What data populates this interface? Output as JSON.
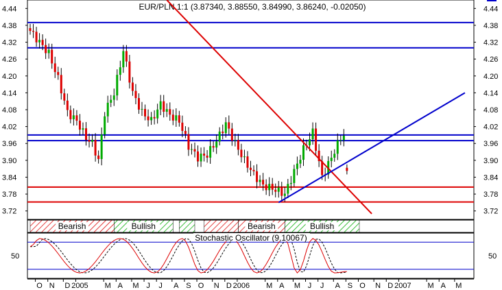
{
  "chart_data": [
    {
      "type": "candlestick",
      "title": "EUR/PLN 1:1 (3.87340, 3.88550, 3.84990, 3.86240, -0.02050)",
      "ylim": [
        3.69,
        4.47
      ],
      "y_ticks": [
        "4.44",
        "4.38",
        "4.32",
        "4.26",
        "4.20",
        "4.14",
        "4.08",
        "4.02",
        "3.96",
        "3.90",
        "3.84",
        "3.78",
        "3.72"
      ],
      "y_tick_values": [
        4.44,
        4.38,
        4.32,
        4.26,
        4.2,
        4.14,
        4.08,
        4.02,
        3.96,
        3.9,
        3.84,
        3.78,
        3.72
      ],
      "x_ticks": [
        "O",
        "N",
        "D",
        "2005",
        "M",
        "A",
        "M",
        "J",
        "J",
        "A",
        "S",
        "O",
        "N",
        "D",
        "2006",
        "M",
        "A",
        "M",
        "J",
        "J",
        "A",
        "S",
        "O",
        "N",
        "D",
        "2007",
        "M",
        "A",
        "M"
      ],
      "x_tick_weeks": [
        3,
        7,
        12,
        16,
        25,
        29,
        34,
        38,
        42,
        47,
        51,
        55,
        60,
        64,
        68,
        77,
        81,
        86,
        90,
        94,
        99,
        103,
        107,
        112,
        116,
        120,
        129,
        133,
        138
      ],
      "last_week": 102,
      "weeks_shown": 142,
      "anchors": [
        [
          0,
          4.36
        ],
        [
          3,
          4.32
        ],
        [
          6,
          4.28
        ],
        [
          9,
          4.19
        ],
        [
          12,
          4.07
        ],
        [
          15,
          4.04
        ],
        [
          18,
          3.98
        ],
        [
          20,
          3.96
        ],
        [
          22,
          3.9
        ],
        [
          24,
          4.07
        ],
        [
          27,
          4.14
        ],
        [
          30,
          4.29
        ],
        [
          33,
          4.14
        ],
        [
          36,
          4.07
        ],
        [
          39,
          4.04
        ],
        [
          42,
          4.1
        ],
        [
          45,
          4.06
        ],
        [
          48,
          4.04
        ],
        [
          51,
          3.95
        ],
        [
          54,
          3.91
        ],
        [
          57,
          3.92
        ],
        [
          60,
          3.97
        ],
        [
          63,
          4.03
        ],
        [
          66,
          3.96
        ],
        [
          69,
          3.9
        ],
        [
          72,
          3.85
        ],
        [
          75,
          3.81
        ],
        [
          78,
          3.8
        ],
        [
          80,
          3.79
        ],
        [
          82,
          3.78
        ],
        [
          85,
          3.86
        ],
        [
          88,
          3.94
        ],
        [
          91,
          4.0
        ],
        [
          94,
          3.84
        ],
        [
          97,
          3.91
        ],
        [
          100,
          3.98
        ],
        [
          102,
          4.0
        ],
        [
          104,
          4.12
        ],
        [
          106,
          4.06
        ],
        [
          108,
          3.97
        ],
        [
          110,
          3.9
        ],
        [
          112,
          3.862
        ]
      ],
      "last_candle": {
        "open": 3.8734,
        "high": 3.8855,
        "low": 3.8499,
        "close": 3.8624
      },
      "horizontal_lines": [
        {
          "value": 4.39,
          "color": "#0000cc"
        },
        {
          "value": 4.3,
          "color": "#0000cc"
        },
        {
          "value": 3.99,
          "color": "#0000cc"
        },
        {
          "value": 3.97,
          "color": "#0000cc"
        },
        {
          "value": 3.805,
          "color": "#dd0000"
        },
        {
          "value": 3.752,
          "color": "#dd0000"
        }
      ],
      "trend_lines": [
        {
          "from": [
            44,
            4.47
          ],
          "to": [
            110,
            3.71
          ],
          "color": "#dd0000"
        },
        {
          "from": [
            80,
            3.75
          ],
          "to": [
            140,
            4.14
          ],
          "color": "#0000cc"
        }
      ],
      "trend_bands": [
        {
          "label": "Bearish",
          "from_week": 0,
          "to_week": 27
        },
        {
          "label": "Bullish",
          "from_week": 27,
          "to_week": 46
        },
        {
          "from_week": 48,
          "to_week": 53
        },
        {
          "from_week": 56,
          "to_week": 67
        },
        {
          "label": "Bearish",
          "from_week": 67,
          "to_week": 82
        },
        {
          "label": "Bullish",
          "from_week": 82,
          "to_week": 106
        }
      ],
      "colors": {
        "up": "#00aa00",
        "down": "#dd0000",
        "up_band": "#00aa00",
        "down_band": "#dd0000"
      }
    },
    {
      "type": "line",
      "title": "Stochastic Oscillator (9,10067)",
      "ylim": [
        0,
        100
      ],
      "y_ticks": [
        "50"
      ],
      "y_tick_values": [
        50
      ],
      "levels": [
        80,
        20
      ],
      "peaks_weeks": [
        3,
        29,
        49,
        65,
        82,
        91,
        104
      ],
      "troughs_weeks": [
        16,
        40,
        55,
        73,
        86,
        98
      ],
      "series": [
        {
          "style": "solid",
          "color": "#dd0000"
        },
        {
          "style": "dashed",
          "color": "#000000"
        }
      ]
    }
  ]
}
